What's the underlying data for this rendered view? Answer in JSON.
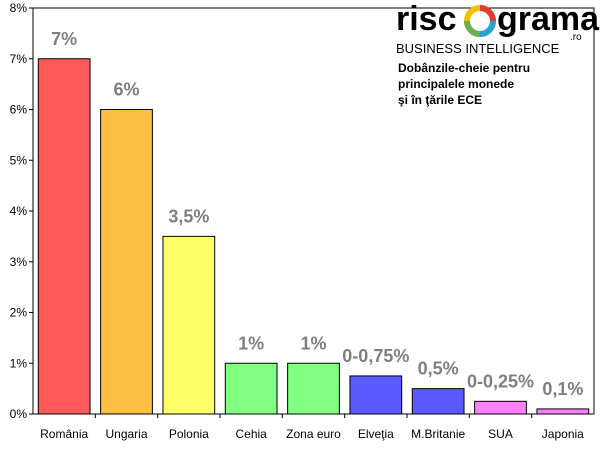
{
  "logo": {
    "left": "risc",
    "right": "grama",
    "domain": ".ro",
    "tagline": "BUSINESS INTELLIGENCE"
  },
  "note_lines": [
    "Dobânzile-cheie pentru",
    "principalele monede",
    "şi în ţările ECE"
  ],
  "chart_data": {
    "type": "bar",
    "title": "",
    "xlabel": "",
    "ylabel": "",
    "ylim": [
      0,
      8
    ],
    "yticks": [
      0,
      1,
      2,
      3,
      4,
      5,
      6,
      7,
      8
    ],
    "y_tick_labels": [
      "0%",
      "1%",
      "2%",
      "3%",
      "4%",
      "5%",
      "6%",
      "7%",
      "8%"
    ],
    "grid": false,
    "legend": "none",
    "categories": [
      "România",
      "Ungaria",
      "Polonia",
      "Cehia",
      "Zona euro",
      "Elveţia",
      "M.Britanie",
      "SUA",
      "Japonia"
    ],
    "values": [
      7,
      6,
      3.5,
      1,
      1,
      0.75,
      0.5,
      0.25,
      0.1
    ],
    "data_labels": [
      "7%",
      "6%",
      "3,5%",
      "1%",
      "1%",
      "0-0,75%",
      "0,5%",
      "0-0,25%",
      "0,1%"
    ],
    "colors": [
      "#ff5a5a",
      "#ffbf40",
      "#ffff66",
      "#80ff80",
      "#80ff80",
      "#5a5aff",
      "#5a5aff",
      "#ff80ff",
      "#ff80ff"
    ]
  }
}
